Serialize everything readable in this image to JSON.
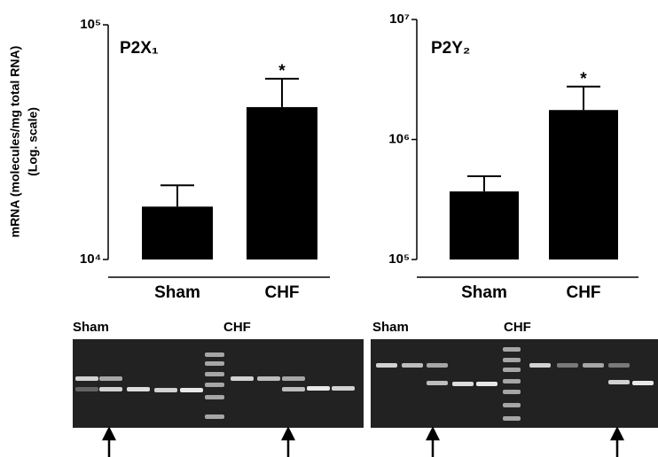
{
  "chart_data": [
    {
      "type": "bar",
      "title": "P2X₁",
      "ylabel": [
        "mRNA (molecules/mg total RNA)",
        "(Log. scale)"
      ],
      "categories": [
        "Sham",
        "CHF"
      ],
      "values": [
        16800,
        44600
      ],
      "errors": [
        3900,
        14300
      ],
      "significance": [
        null,
        "*"
      ],
      "color": "#000000",
      "log_scale": true,
      "ylim": [
        10000,
        100000
      ],
      "yticks": [
        {
          "value": 10000,
          "label": "10⁴"
        },
        {
          "value": 100000,
          "label": "10⁵"
        }
      ]
    },
    {
      "type": "bar",
      "title": "P2Y₂",
      "categories": [
        "Sham",
        "CHF"
      ],
      "values": [
        369000,
        1760000
      ],
      "errors": [
        125000,
        1000000
      ],
      "significance": [
        null,
        "*"
      ],
      "color": "#000000",
      "log_scale": true,
      "ylim": [
        100000,
        10000000
      ],
      "yticks": [
        {
          "value": 100000,
          "label": "10⁵"
        },
        {
          "value": 1000000,
          "label": "10⁶"
        },
        {
          "value": 10000000,
          "label": "10⁷"
        }
      ]
    }
  ],
  "gels": [
    {
      "labels": [
        "Sham",
        "CHF"
      ]
    },
    {
      "labels": [
        "Sham",
        "CHF"
      ]
    }
  ]
}
